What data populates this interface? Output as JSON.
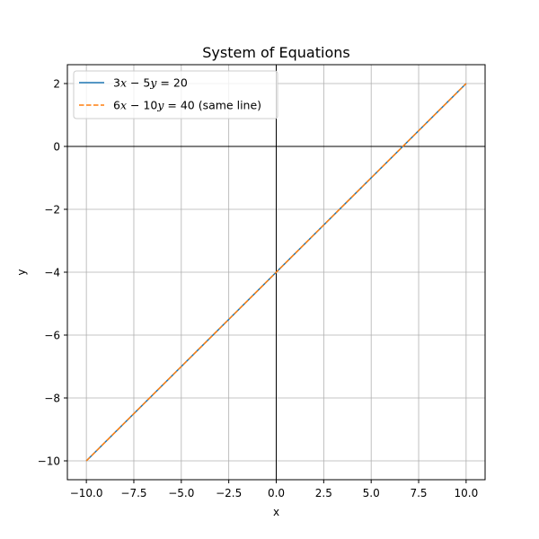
{
  "chart_data": {
    "type": "line",
    "title": "System of Equations",
    "xlabel": "x",
    "ylabel": "y",
    "xlim": [
      -11.0,
      11.0
    ],
    "ylim": [
      -10.6,
      2.6
    ],
    "grid": true,
    "legend_position": "top-left",
    "x_ticks": [
      -10.0,
      -7.5,
      -5.0,
      -2.5,
      0.0,
      2.5,
      5.0,
      7.5,
      10.0
    ],
    "x_tick_labels": [
      "−10.0",
      "−7.5",
      "−5.0",
      "−2.5",
      "0.0",
      "2.5",
      "5.0",
      "7.5",
      "10.0"
    ],
    "y_ticks": [
      2,
      0,
      -2,
      -4,
      -6,
      -8,
      -10
    ],
    "y_tick_labels": [
      "2",
      "0",
      "−2",
      "−4",
      "−6",
      "−8",
      "−10"
    ],
    "reference_lines": [
      "x = 0",
      "y = 0"
    ],
    "series": [
      {
        "name": "3x − 5y = 20",
        "color": "#1f77b4",
        "style": "solid",
        "x": [
          -10,
          10
        ],
        "y": [
          -10,
          2
        ]
      },
      {
        "name": "6x − 10y = 40 (same line)",
        "color": "#ff7f0e",
        "style": "dashed",
        "x": [
          -10,
          10
        ],
        "y": [
          -10,
          2
        ]
      }
    ]
  }
}
